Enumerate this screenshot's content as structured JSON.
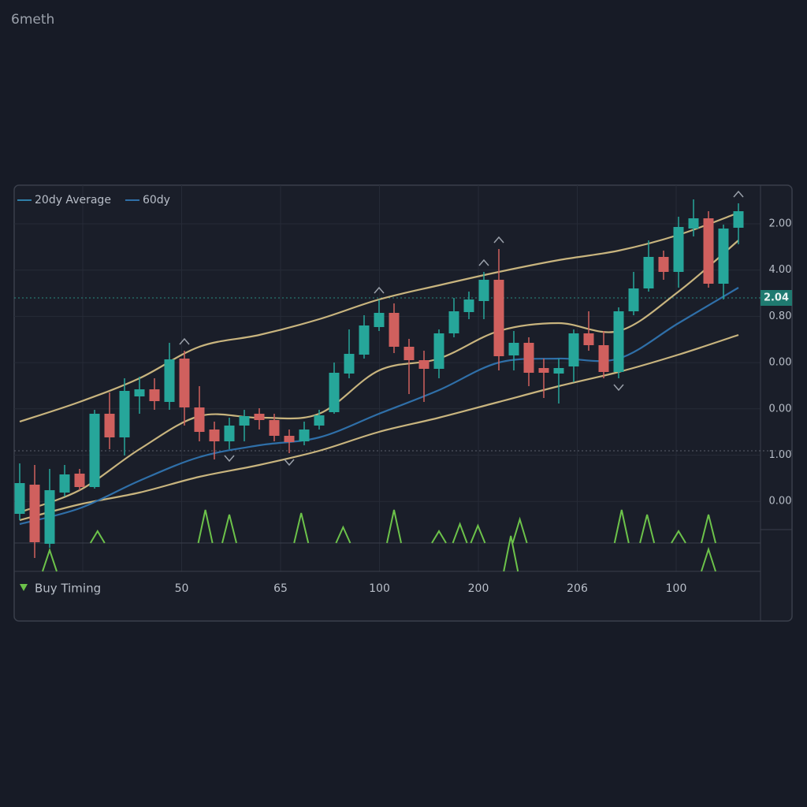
{
  "chart_data": {
    "type": "candlestick",
    "title": "6meth",
    "ylim": [
      -40,
      455
    ],
    "candles": {
      "open": [
        38,
        75,
        0,
        65,
        89,
        72,
        165,
        135,
        187,
        196,
        180,
        235,
        173,
        145,
        130,
        150,
        165,
        157,
        137,
        130,
        150,
        167,
        216,
        240,
        275,
        293,
        250,
        233,
        222,
        267,
        294,
        308,
        335,
        239,
        255,
        223,
        216,
        225,
        267,
        252,
        218,
        295,
        324,
        364,
        345,
        400,
        413,
        330,
        401
      ],
      "high": [
        102,
        100,
        95,
        100,
        95,
        170,
        192,
        210,
        212,
        210,
        255,
        245,
        200,
        155,
        160,
        170,
        172,
        165,
        145,
        155,
        170,
        230,
        272,
        290,
        310,
        305,
        260,
        245,
        272,
        312,
        320,
        345,
        374,
        270,
        262,
        235,
        235,
        272,
        295,
        270,
        300,
        345,
        385,
        372,
        415,
        437,
        422,
        405,
        432
      ],
      "low": [
        30,
        -18,
        -5,
        60,
        68,
        70,
        120,
        112,
        165,
        170,
        170,
        150,
        130,
        107,
        120,
        130,
        145,
        130,
        115,
        125,
        145,
        165,
        210,
        235,
        270,
        242,
        190,
        180,
        210,
        262,
        285,
        285,
        220,
        220,
        200,
        185,
        178,
        205,
        245,
        210,
        210,
        290,
        320,
        335,
        325,
        390,
        325,
        310,
        380
      ],
      "close": [
        77,
        2,
        68,
        88,
        72,
        165,
        135,
        194,
        196,
        181,
        234,
        173,
        142,
        130,
        150,
        162,
        157,
        137,
        129,
        145,
        163,
        217,
        241,
        277,
        293,
        250,
        233,
        222,
        267,
        295,
        310,
        335,
        238,
        255,
        217,
        217,
        223,
        267,
        252,
        218,
        295,
        324,
        364,
        345,
        402,
        413,
        330,
        400,
        422
      ],
      "up_color": "#26a69a",
      "down_color": "#d0605e"
    },
    "line_x": [
      0,
      4,
      8,
      12,
      16,
      20,
      24,
      28,
      32,
      36,
      40,
      44,
      48
    ],
    "series": [
      {
        "name": "20dy Average",
        "color": "#c8b47e",
        "values": [
          40,
          68,
          120,
          162,
          160,
          165,
          220,
          235,
          270,
          280,
          270,
          320,
          385
        ]
      },
      {
        "name": "60dy",
        "color": "#2f6fa8",
        "values": [
          25,
          45,
          80,
          110,
          125,
          135,
          165,
          195,
          230,
          235,
          235,
          280,
          325
        ]
      }
    ],
    "bands": [
      {
        "color": "#c8b47e",
        "values": [
          155,
          180,
          210,
          250,
          265,
          285,
          310,
          328,
          345,
          360,
          372,
          392,
          420
        ]
      },
      {
        "color": "#c8b47e",
        "values": [
          30,
          50,
          65,
          85,
          100,
          118,
          142,
          160,
          180,
          200,
          218,
          240,
          265
        ]
      }
    ],
    "peak_markers": [
      11,
      24,
      31,
      32,
      48
    ],
    "trough_markers": [
      14,
      18,
      40
    ],
    "reference_lines": [
      312,
      118
    ],
    "current_price_label": "2.04",
    "y_axis_labels": [
      "2.00",
      "4.00",
      "0.80",
      "0.00",
      "0.00",
      "1.00",
      "0.00"
    ],
    "x_axis_labels": [
      "50",
      "65",
      "100",
      "200",
      "206",
      "100"
    ],
    "signals": {
      "positions": [
        5.2,
        12.4,
        14,
        18.8,
        21.6,
        25,
        28,
        29.4,
        30.6,
        33.4,
        40.2,
        41.9,
        44,
        46
      ],
      "strengths": [
        15,
        42,
        36,
        38,
        20,
        42,
        15,
        24,
        22,
        30,
        42,
        36,
        15,
        36
      ]
    },
    "lower_signals": {
      "positions": [
        2,
        32.8,
        46
      ],
      "strengths": [
        27,
        45,
        28
      ]
    },
    "signal_legend": "Buy Timing"
  }
}
